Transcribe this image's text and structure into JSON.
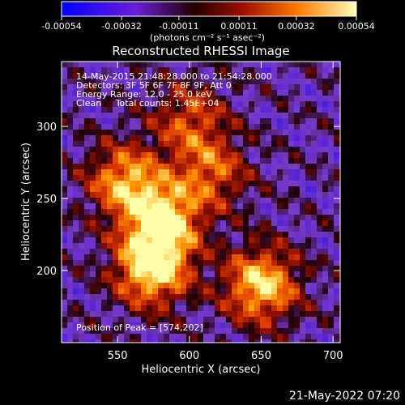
{
  "chart_data": {
    "type": "heatmap",
    "title": "Reconstructed RHESSI Image",
    "xlabel": "Heliocentric X (arcsec)",
    "ylabel": "Heliocentric Y (arcsec)",
    "xlim": [
      511,
      705
    ],
    "ylim": [
      150,
      345
    ],
    "x_ticks": [
      550,
      600,
      650,
      700
    ],
    "y_ticks": [
      200,
      250,
      300
    ],
    "colorbar": {
      "range": [
        -0.00054,
        0.00054
      ],
      "ticks": [
        {
          "value": -0.00054,
          "label": "-0.00054"
        },
        {
          "value": -0.00032,
          "label": "-0.00032"
        },
        {
          "value": -0.00011,
          "label": "-0.00011"
        },
        {
          "value": 0.00011,
          "label": "0.00011"
        },
        {
          "value": 0.00032,
          "label": "0.00032"
        },
        {
          "value": 0.00054,
          "label": "0.00054"
        }
      ],
      "unit_label": "(photons cm⁻² s⁻¹ asec⁻²)"
    },
    "annotations": [
      "14-May-2015 21:48:28.000 to 21:54:28.000",
      "Detectors: 3F 5F 6F 7F 8F 9F, Att 0",
      "Energy Range: 12.0 - 25.0 keV",
      "Clean     Total counts: 1.45E+04"
    ],
    "peak_label": "Position of Peak = [574,202]",
    "sources": [
      {
        "x": 574,
        "y": 202,
        "peak": 1.0
      },
      {
        "x": 582,
        "y": 235,
        "peak": 0.9
      },
      {
        "x": 555,
        "y": 262,
        "peak": 0.75
      },
      {
        "x": 650,
        "y": 190,
        "peak": 0.9
      },
      {
        "x": 615,
        "y": 268,
        "peak": 0.55
      },
      {
        "x": 600,
        "y": 305,
        "peak": 0.5
      }
    ]
  },
  "footer": {
    "timestamp": "21-May-2022 07:20"
  }
}
